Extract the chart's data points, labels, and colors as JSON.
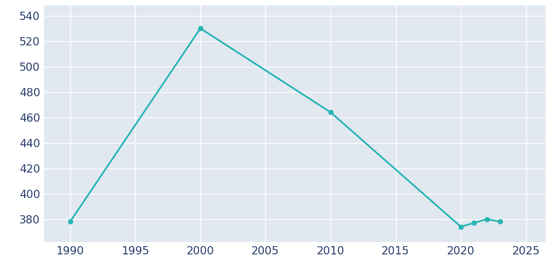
{
  "years": [
    1990,
    2000,
    2010,
    2020,
    2021,
    2022,
    2023
  ],
  "population": [
    378,
    530,
    464,
    374,
    377,
    380,
    378
  ],
  "line_color": "#2AB5B5",
  "marker_color": "#2AB5B5",
  "fig_bg_color": "#FFFFFF",
  "plot_bg_color": "#E1E8F0",
  "tick_label_color": "#2B3E6E",
  "grid_color": "#FFFFFF",
  "xlim": [
    1988,
    2026.5
  ],
  "ylim": [
    362,
    548
  ],
  "yticks": [
    380,
    400,
    420,
    440,
    460,
    480,
    500,
    520,
    540
  ],
  "xticks": [
    1990,
    1995,
    2000,
    2005,
    2010,
    2015,
    2020,
    2025
  ],
  "tick_fontsize": 11.5,
  "linewidth": 1.8,
  "markersize": 4.5
}
